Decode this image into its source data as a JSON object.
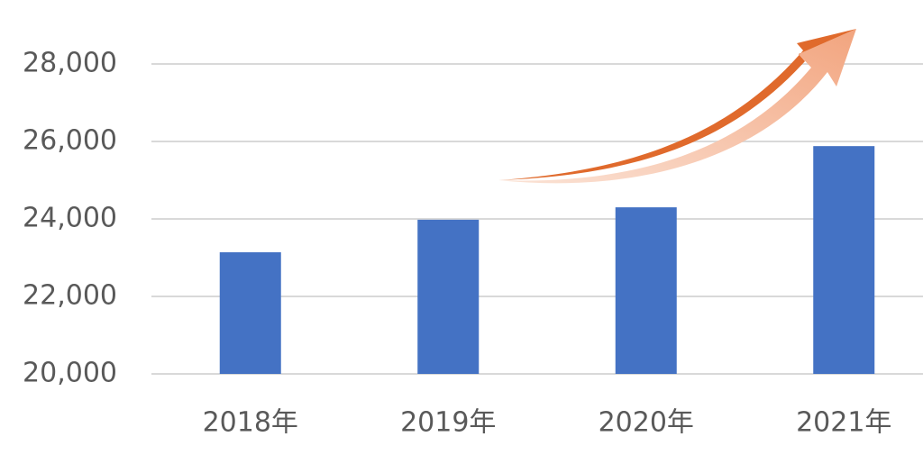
{
  "chart_data": {
    "type": "bar",
    "categories": [
      "2018年",
      "2019年",
      "2020年",
      "2021年"
    ],
    "values": [
      23140,
      23980,
      24300,
      25880
    ],
    "color": "#4472c4",
    "ylim": [
      20000,
      28000
    ],
    "yticks": [
      {
        "value": 20000,
        "label": "20,000"
      },
      {
        "value": 22000,
        "label": "22,000"
      },
      {
        "value": 24000,
        "label": "24,000"
      },
      {
        "value": 26000,
        "label": "26,000"
      },
      {
        "value": 28000,
        "label": "28,000"
      }
    ],
    "grid": true
  }
}
